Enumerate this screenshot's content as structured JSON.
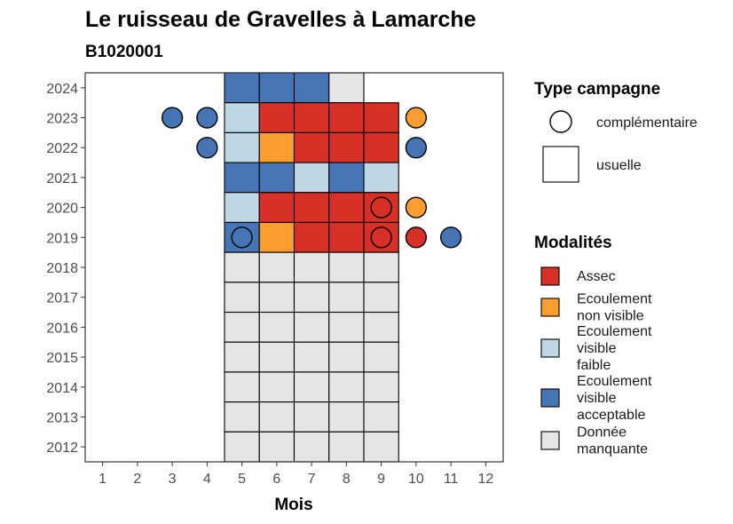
{
  "chart_data": {
    "type": "heatmap",
    "title": "Le ruisseau de Gravelles à Lamarche",
    "subtitle": "B1020001",
    "xlabel": "Mois",
    "ylabel": "",
    "x_ticks": [
      1,
      2,
      3,
      4,
      5,
      6,
      7,
      8,
      9,
      10,
      11,
      12
    ],
    "y_ticks": [
      2012,
      2013,
      2014,
      2015,
      2016,
      2017,
      2018,
      2019,
      2020,
      2021,
      2022,
      2023,
      2024
    ],
    "xlim": [
      0.5,
      12.5
    ],
    "ylim": [
      2011.5,
      2024.5
    ],
    "categories": {
      "assec": {
        "label": "Assec",
        "color": "#d73027"
      },
      "non_visible": {
        "label": "Ecoulement\nnon visible",
        "color": "#fc9d30"
      },
      "faible": {
        "label": "Ecoulement\nvisible\nfaible",
        "color": "#bdd7e7"
      },
      "acceptable": {
        "label": "Ecoulement\nvisible\nacceptable",
        "color": "#4575b4"
      },
      "manquante": {
        "label": "Donnée\nmanquante",
        "color": "#e5e5e5"
      }
    },
    "usuelle": [
      {
        "year": 2024,
        "months": [
          "acceptable",
          "acceptable",
          "acceptable",
          "manquante"
        ],
        "start": 5
      },
      {
        "year": 2023,
        "months": [
          "faible",
          "assec",
          "assec",
          "assec",
          "assec"
        ],
        "start": 5
      },
      {
        "year": 2022,
        "months": [
          "faible",
          "non_visible",
          "assec",
          "assec",
          "assec"
        ],
        "start": 5
      },
      {
        "year": 2021,
        "months": [
          "acceptable",
          "acceptable",
          "faible",
          "acceptable",
          "faible"
        ],
        "start": 5
      },
      {
        "year": 2020,
        "months": [
          "faible",
          "assec",
          "assec",
          "assec",
          "assec"
        ],
        "start": 5
      },
      {
        "year": 2019,
        "months": [
          "acceptable",
          "non_visible",
          "assec",
          "assec",
          "assec"
        ],
        "start": 5
      },
      {
        "year": 2018,
        "months": [
          "manquante",
          "manquante",
          "manquante",
          "manquante",
          "manquante"
        ],
        "start": 5
      },
      {
        "year": 2017,
        "months": [
          "manquante",
          "manquante",
          "manquante",
          "manquante",
          "manquante"
        ],
        "start": 5
      },
      {
        "year": 2016,
        "months": [
          "manquante",
          "manquante",
          "manquante",
          "manquante",
          "manquante"
        ],
        "start": 5
      },
      {
        "year": 2015,
        "months": [
          "manquante",
          "manquante",
          "manquante",
          "manquante",
          "manquante"
        ],
        "start": 5
      },
      {
        "year": 2014,
        "months": [
          "manquante",
          "manquante",
          "manquante",
          "manquante",
          "manquante"
        ],
        "start": 5
      },
      {
        "year": 2013,
        "months": [
          "manquante",
          "manquante",
          "manquante",
          "manquante",
          "manquante"
        ],
        "start": 5
      },
      {
        "year": 2012,
        "months": [
          "manquante",
          "manquante",
          "manquante",
          "manquante",
          "manquante"
        ],
        "start": 5
      }
    ],
    "complementaire": [
      {
        "year": 2023,
        "month": 3,
        "cat": "acceptable"
      },
      {
        "year": 2023,
        "month": 4,
        "cat": "acceptable"
      },
      {
        "year": 2023,
        "month": 10,
        "cat": "non_visible"
      },
      {
        "year": 2022,
        "month": 4,
        "cat": "acceptable"
      },
      {
        "year": 2022,
        "month": 10,
        "cat": "acceptable"
      },
      {
        "year": 2020,
        "month": 9,
        "cat": "assec"
      },
      {
        "year": 2020,
        "month": 10,
        "cat": "non_visible"
      },
      {
        "year": 2019,
        "month": 5,
        "cat": "acceptable"
      },
      {
        "year": 2019,
        "month": 9,
        "cat": "assec"
      },
      {
        "year": 2019,
        "month": 10,
        "cat": "assec"
      },
      {
        "year": 2019,
        "month": 11,
        "cat": "acceptable"
      }
    ],
    "legend": {
      "type_title": "Type campagne",
      "type_items": [
        {
          "shape": "circle",
          "label": "complémentaire"
        },
        {
          "shape": "square",
          "label": "usuelle"
        }
      ],
      "modal_title": "Modalités",
      "modal_order": [
        "assec",
        "non_visible",
        "faible",
        "acceptable",
        "manquante"
      ],
      "position": "right"
    },
    "grid": false
  }
}
